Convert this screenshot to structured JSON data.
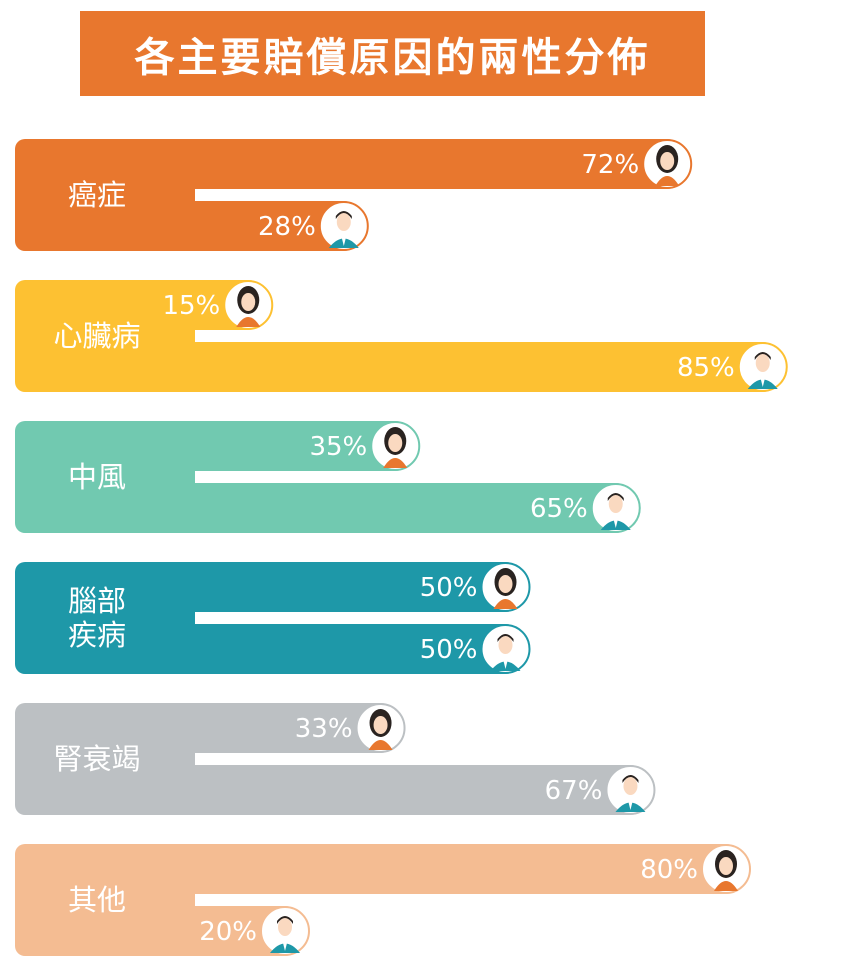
{
  "title": "各主要賠償原因的兩性分佈",
  "colors": {
    "title_bg": "#E8772E",
    "gap": "#ffffff",
    "female_icon_shirt": "#E8772E",
    "male_icon_shirt": "#1E98A8",
    "skin": "#FAD9C0",
    "hair": "#2A2320"
  },
  "chart_data": {
    "type": "bar",
    "orientation": "horizontal",
    "xlim": [
      0,
      100
    ],
    "legend": "none",
    "grid": false,
    "categories": [
      "癌症",
      "心臟病",
      "中風",
      "腦部\n疾病",
      "腎衰竭",
      "其他"
    ],
    "category_colors": [
      "#E8772E",
      "#FDC132",
      "#71C9B0",
      "#1E98A8",
      "#BCC0C3",
      "#F4BC92"
    ],
    "series": [
      {
        "icon": "female-icon",
        "values": [
          72,
          15,
          35,
          50,
          33,
          80
        ]
      },
      {
        "icon": "male-icon",
        "values": [
          28,
          85,
          65,
          50,
          67,
          20
        ]
      }
    ],
    "value_labels": [
      [
        "72%",
        "28%"
      ],
      [
        "15%",
        "85%"
      ],
      [
        "35%",
        "65%"
      ],
      [
        "50%",
        "50%"
      ],
      [
        "33%",
        "67%"
      ],
      [
        "80%",
        "20%"
      ]
    ]
  }
}
